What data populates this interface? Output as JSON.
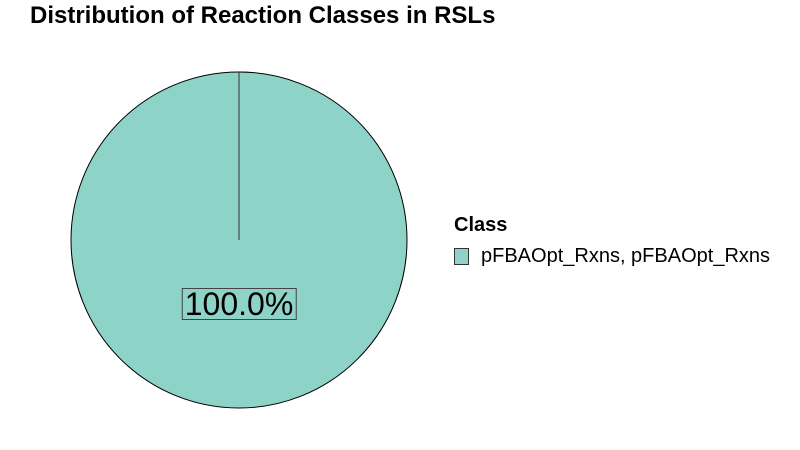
{
  "chart_data": {
    "type": "pie",
    "title": "Distribution of Reaction Classes in RSLs",
    "legend_title": "Class",
    "legend_position": "right",
    "slices": [
      {
        "label": "pFBAOpt_Rxns, pFBAOpt_Rxns",
        "value": 100.0,
        "display": "100.0%",
        "color": "#8ed3c7"
      }
    ]
  }
}
